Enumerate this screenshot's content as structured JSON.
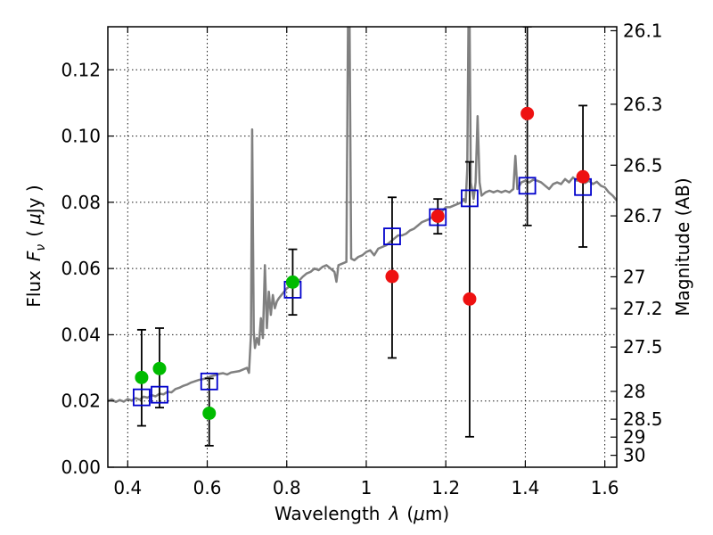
{
  "chart_data": {
    "type": "scatter",
    "xlabel_prefix": "Wavelength",
    "xlabel_symbol": "λ",
    "xlabel_unit_open": "(",
    "xlabel_unit_mu": "μ",
    "xlabel_unit_rest": "m)",
    "ylabel_prefix": "Flux",
    "ylabel_symbol": "F",
    "ylabel_sub": "ν",
    "ylabel_unit_open": "(",
    "ylabel_unit_mu": "μ",
    "ylabel_unit_rest": "Jy )",
    "y2label": "Magnitude (AB)",
    "xlim": [
      0.35,
      1.63
    ],
    "ylim": [
      0.0,
      0.133
    ],
    "x_ticks": [
      0.4,
      0.6,
      0.8,
      1.0,
      1.2,
      1.4,
      1.6
    ],
    "x_tick_labels": [
      "0.4",
      "0.6",
      "0.8",
      "1",
      "1.2",
      "1.4",
      "1.6"
    ],
    "y_ticks": [
      0.0,
      0.02,
      0.04,
      0.06,
      0.08,
      0.1,
      0.12
    ],
    "y_tick_labels": [
      "0.00",
      "0.02",
      "0.04",
      "0.06",
      "0.08",
      "0.10",
      "0.12"
    ],
    "mag_ticks": [
      {
        "label": "26.1",
        "flux": 0.1318
      },
      {
        "label": "26.3",
        "flux": 0.1096
      },
      {
        "label": "26.5",
        "flux": 0.0912
      },
      {
        "label": "26.7",
        "flux": 0.0759
      },
      {
        "label": "27",
        "flux": 0.0575
      },
      {
        "label": "27.2",
        "flux": 0.0479
      },
      {
        "label": "27.5",
        "flux": 0.0363
      },
      {
        "label": "28",
        "flux": 0.0229
      },
      {
        "label": "28.5",
        "flux": 0.0145
      },
      {
        "label": "29",
        "flux": 0.0091
      },
      {
        "label": "30",
        "flux": 0.0036
      }
    ],
    "grid": true,
    "colors": {
      "spectrum": "#808080",
      "green": "#00bb00",
      "red": "#ee1111",
      "model": "#0000cc",
      "errorbar": "#000000"
    },
    "spectrum": [
      [
        0.35,
        0.02
      ],
      [
        0.36,
        0.0205
      ],
      [
        0.37,
        0.0197
      ],
      [
        0.38,
        0.0203
      ],
      [
        0.39,
        0.0198
      ],
      [
        0.4,
        0.0206
      ],
      [
        0.41,
        0.0201
      ],
      [
        0.42,
        0.0209
      ],
      [
        0.43,
        0.0204
      ],
      [
        0.44,
        0.0213
      ],
      [
        0.45,
        0.021
      ],
      [
        0.46,
        0.0218
      ],
      [
        0.47,
        0.0214
      ],
      [
        0.48,
        0.0222
      ],
      [
        0.49,
        0.022
      ],
      [
        0.5,
        0.0228
      ],
      [
        0.51,
        0.0226
      ],
      [
        0.52,
        0.0236
      ],
      [
        0.53,
        0.024
      ],
      [
        0.54,
        0.0246
      ],
      [
        0.55,
        0.025
      ],
      [
        0.56,
        0.0256
      ],
      [
        0.57,
        0.026
      ],
      [
        0.58,
        0.0264
      ],
      [
        0.59,
        0.0266
      ],
      [
        0.6,
        0.027
      ],
      [
        0.61,
        0.0275
      ],
      [
        0.62,
        0.0278
      ],
      [
        0.63,
        0.0282
      ],
      [
        0.64,
        0.0284
      ],
      [
        0.65,
        0.028
      ],
      [
        0.66,
        0.0286
      ],
      [
        0.67,
        0.0288
      ],
      [
        0.68,
        0.029
      ],
      [
        0.69,
        0.0295
      ],
      [
        0.7,
        0.03
      ],
      [
        0.705,
        0.0285
      ],
      [
        0.71,
        0.04
      ],
      [
        0.713,
        0.102
      ],
      [
        0.717,
        0.041
      ],
      [
        0.72,
        0.036
      ],
      [
        0.725,
        0.039
      ],
      [
        0.73,
        0.037
      ],
      [
        0.735,
        0.045
      ],
      [
        0.74,
        0.039
      ],
      [
        0.745,
        0.061
      ],
      [
        0.75,
        0.042
      ],
      [
        0.755,
        0.053
      ],
      [
        0.76,
        0.046
      ],
      [
        0.765,
        0.052
      ],
      [
        0.77,
        0.048
      ],
      [
        0.775,
        0.05
      ],
      [
        0.78,
        0.051
      ],
      [
        0.79,
        0.0525
      ],
      [
        0.8,
        0.054
      ],
      [
        0.81,
        0.0548
      ],
      [
        0.82,
        0.0555
      ],
      [
        0.83,
        0.0562
      ],
      [
        0.84,
        0.0575
      ],
      [
        0.85,
        0.0585
      ],
      [
        0.86,
        0.059
      ],
      [
        0.87,
        0.06
      ],
      [
        0.88,
        0.0595
      ],
      [
        0.89,
        0.0605
      ],
      [
        0.9,
        0.061
      ],
      [
        0.91,
        0.06
      ],
      [
        0.92,
        0.059
      ],
      [
        0.925,
        0.056
      ],
      [
        0.93,
        0.061
      ],
      [
        0.94,
        0.0615
      ],
      [
        0.95,
        0.062
      ],
      [
        0.954,
        0.133
      ],
      [
        0.958,
        0.133
      ],
      [
        0.962,
        0.063
      ],
      [
        0.97,
        0.0625
      ],
      [
        0.98,
        0.0635
      ],
      [
        0.99,
        0.064
      ],
      [
        1.0,
        0.065
      ],
      [
        1.01,
        0.0655
      ],
      [
        1.02,
        0.064
      ],
      [
        1.03,
        0.066
      ],
      [
        1.04,
        0.0665
      ],
      [
        1.05,
        0.067
      ],
      [
        1.06,
        0.068
      ],
      [
        1.07,
        0.069
      ],
      [
        1.08,
        0.07
      ],
      [
        1.09,
        0.07
      ],
      [
        1.1,
        0.0705
      ],
      [
        1.11,
        0.0715
      ],
      [
        1.12,
        0.072
      ],
      [
        1.13,
        0.073
      ],
      [
        1.14,
        0.074
      ],
      [
        1.15,
        0.0745
      ],
      [
        1.16,
        0.075
      ],
      [
        1.17,
        0.076
      ],
      [
        1.18,
        0.0765
      ],
      [
        1.19,
        0.0772
      ],
      [
        1.2,
        0.0785
      ],
      [
        1.21,
        0.0785
      ],
      [
        1.22,
        0.079
      ],
      [
        1.23,
        0.0795
      ],
      [
        1.24,
        0.08
      ],
      [
        1.245,
        0.081
      ],
      [
        1.25,
        0.08
      ],
      [
        1.254,
        0.09
      ],
      [
        1.257,
        0.133
      ],
      [
        1.26,
        0.133
      ],
      [
        1.263,
        0.086
      ],
      [
        1.27,
        0.081
      ],
      [
        1.275,
        0.086
      ],
      [
        1.28,
        0.106
      ],
      [
        1.285,
        0.086
      ],
      [
        1.29,
        0.082
      ],
      [
        1.3,
        0.083
      ],
      [
        1.31,
        0.0835
      ],
      [
        1.32,
        0.083
      ],
      [
        1.33,
        0.0835
      ],
      [
        1.34,
        0.083
      ],
      [
        1.35,
        0.0835
      ],
      [
        1.36,
        0.083
      ],
      [
        1.37,
        0.084
      ],
      [
        1.375,
        0.094
      ],
      [
        1.38,
        0.084
      ],
      [
        1.39,
        0.086
      ],
      [
        1.4,
        0.0865
      ],
      [
        1.41,
        0.086
      ],
      [
        1.42,
        0.0868
      ],
      [
        1.43,
        0.0865
      ],
      [
        1.44,
        0.086
      ],
      [
        1.45,
        0.085
      ],
      [
        1.46,
        0.084
      ],
      [
        1.47,
        0.0855
      ],
      [
        1.48,
        0.086
      ],
      [
        1.49,
        0.0855
      ],
      [
        1.5,
        0.087
      ],
      [
        1.51,
        0.086
      ],
      [
        1.52,
        0.0875
      ],
      [
        1.53,
        0.0865
      ],
      [
        1.54,
        0.087
      ],
      [
        1.55,
        0.0858
      ],
      [
        1.56,
        0.0865
      ],
      [
        1.57,
        0.0855
      ],
      [
        1.58,
        0.0862
      ],
      [
        1.59,
        0.085
      ],
      [
        1.6,
        0.0845
      ],
      [
        1.61,
        0.083
      ],
      [
        1.62,
        0.082
      ],
      [
        1.63,
        0.0805
      ]
    ],
    "model_points": [
      {
        "x": 0.435,
        "y": 0.0211
      },
      {
        "x": 0.48,
        "y": 0.0219
      },
      {
        "x": 0.605,
        "y": 0.0259
      },
      {
        "x": 0.815,
        "y": 0.0536
      },
      {
        "x": 1.065,
        "y": 0.0697
      },
      {
        "x": 1.18,
        "y": 0.0755
      },
      {
        "x": 1.26,
        "y": 0.0812
      },
      {
        "x": 1.405,
        "y": 0.085
      },
      {
        "x": 1.545,
        "y": 0.0846
      }
    ],
    "green_points": [
      {
        "x": 0.435,
        "y": 0.0271,
        "err_lo": 0.0125,
        "err_hi": 0.0415
      },
      {
        "x": 0.48,
        "y": 0.0298,
        "err_lo": 0.018,
        "err_hi": 0.042
      },
      {
        "x": 0.605,
        "y": 0.0163,
        "err_lo": 0.0065,
        "err_hi": 0.0268
      },
      {
        "x": 0.815,
        "y": 0.0559,
        "err_lo": 0.046,
        "err_hi": 0.0658
      }
    ],
    "red_points": [
      {
        "x": 1.065,
        "y": 0.0576,
        "err_lo": 0.033,
        "err_hi": 0.0815
      },
      {
        "x": 1.18,
        "y": 0.0758,
        "err_lo": 0.0705,
        "err_hi": 0.081
      },
      {
        "x": 1.26,
        "y": 0.0508,
        "err_lo": 0.0092,
        "err_hi": 0.0922
      },
      {
        "x": 1.405,
        "y": 0.1068,
        "err_lo": 0.073,
        "err_hi": 0.133
      },
      {
        "x": 1.545,
        "y": 0.0877,
        "err_lo": 0.0665,
        "err_hi": 0.1092
      }
    ]
  }
}
